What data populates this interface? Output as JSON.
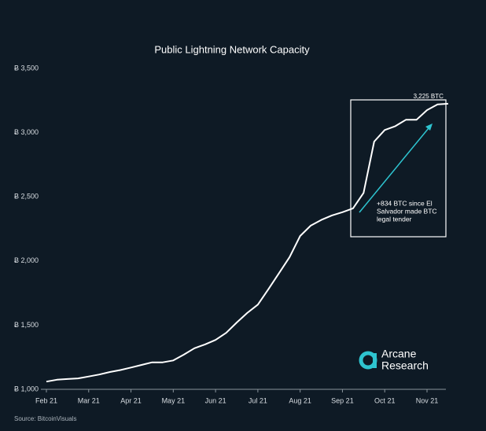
{
  "chart_data": {
    "type": "line",
    "title": "Public Lightning Network Capacity",
    "source": "Source: BitcoinVisuals",
    "logo": [
      "Arcane",
      "Research"
    ],
    "annotation": [
      "+834 BTC since El",
      "Salvador made BTC",
      "legal tender"
    ],
    "categories": [
      "Feb 21",
      null,
      null,
      null,
      "Mar 21",
      null,
      null,
      null,
      "Apr 21",
      null,
      null,
      null,
      "May 21",
      null,
      null,
      null,
      "Jun 21",
      null,
      null,
      null,
      "Jul 21",
      null,
      null,
      null,
      "Aug 21",
      null,
      null,
      null,
      "Sep 21",
      null,
      null,
      null,
      "Oct 21",
      null,
      null,
      null,
      "Nov 21",
      null,
      null
    ],
    "values": [
      1060,
      1075,
      1080,
      1085,
      1100,
      1115,
      1135,
      1150,
      1170,
      1190,
      1210,
      1210,
      1225,
      1270,
      1320,
      1350,
      1385,
      1440,
      1520,
      1595,
      1660,
      1780,
      1905,
      2030,
      2195,
      2275,
      2320,
      2355,
      2380,
      2410,
      2530,
      2930,
      3020,
      3050,
      3100,
      3100,
      3175,
      3220,
      3225
    ],
    "value_labels": [
      null,
      null,
      null,
      null,
      null,
      null,
      null,
      null,
      null,
      null,
      null,
      null,
      null,
      null,
      null,
      null,
      null,
      null,
      null,
      null,
      null,
      null,
      null,
      null,
      null,
      null,
      null,
      null,
      null,
      null,
      null,
      null,
      null,
      null,
      null,
      null,
      null,
      null,
      "3,225 BTC"
    ],
    "color": "#ffffff",
    "ylim": [
      1000,
      3500
    ],
    "yticks": [
      {
        "value": 1000,
        "label": "Ƀ 1,000"
      },
      {
        "value": 1500,
        "label": "Ƀ 1,500"
      },
      {
        "value": 2000,
        "label": "Ƀ 2,000"
      },
      {
        "value": 2500,
        "label": "Ƀ 2,500"
      },
      {
        "value": 3000,
        "label": "Ƀ 3,000"
      },
      {
        "value": 3500,
        "label": "Ƀ 3,500"
      }
    ],
    "grid": false
  }
}
